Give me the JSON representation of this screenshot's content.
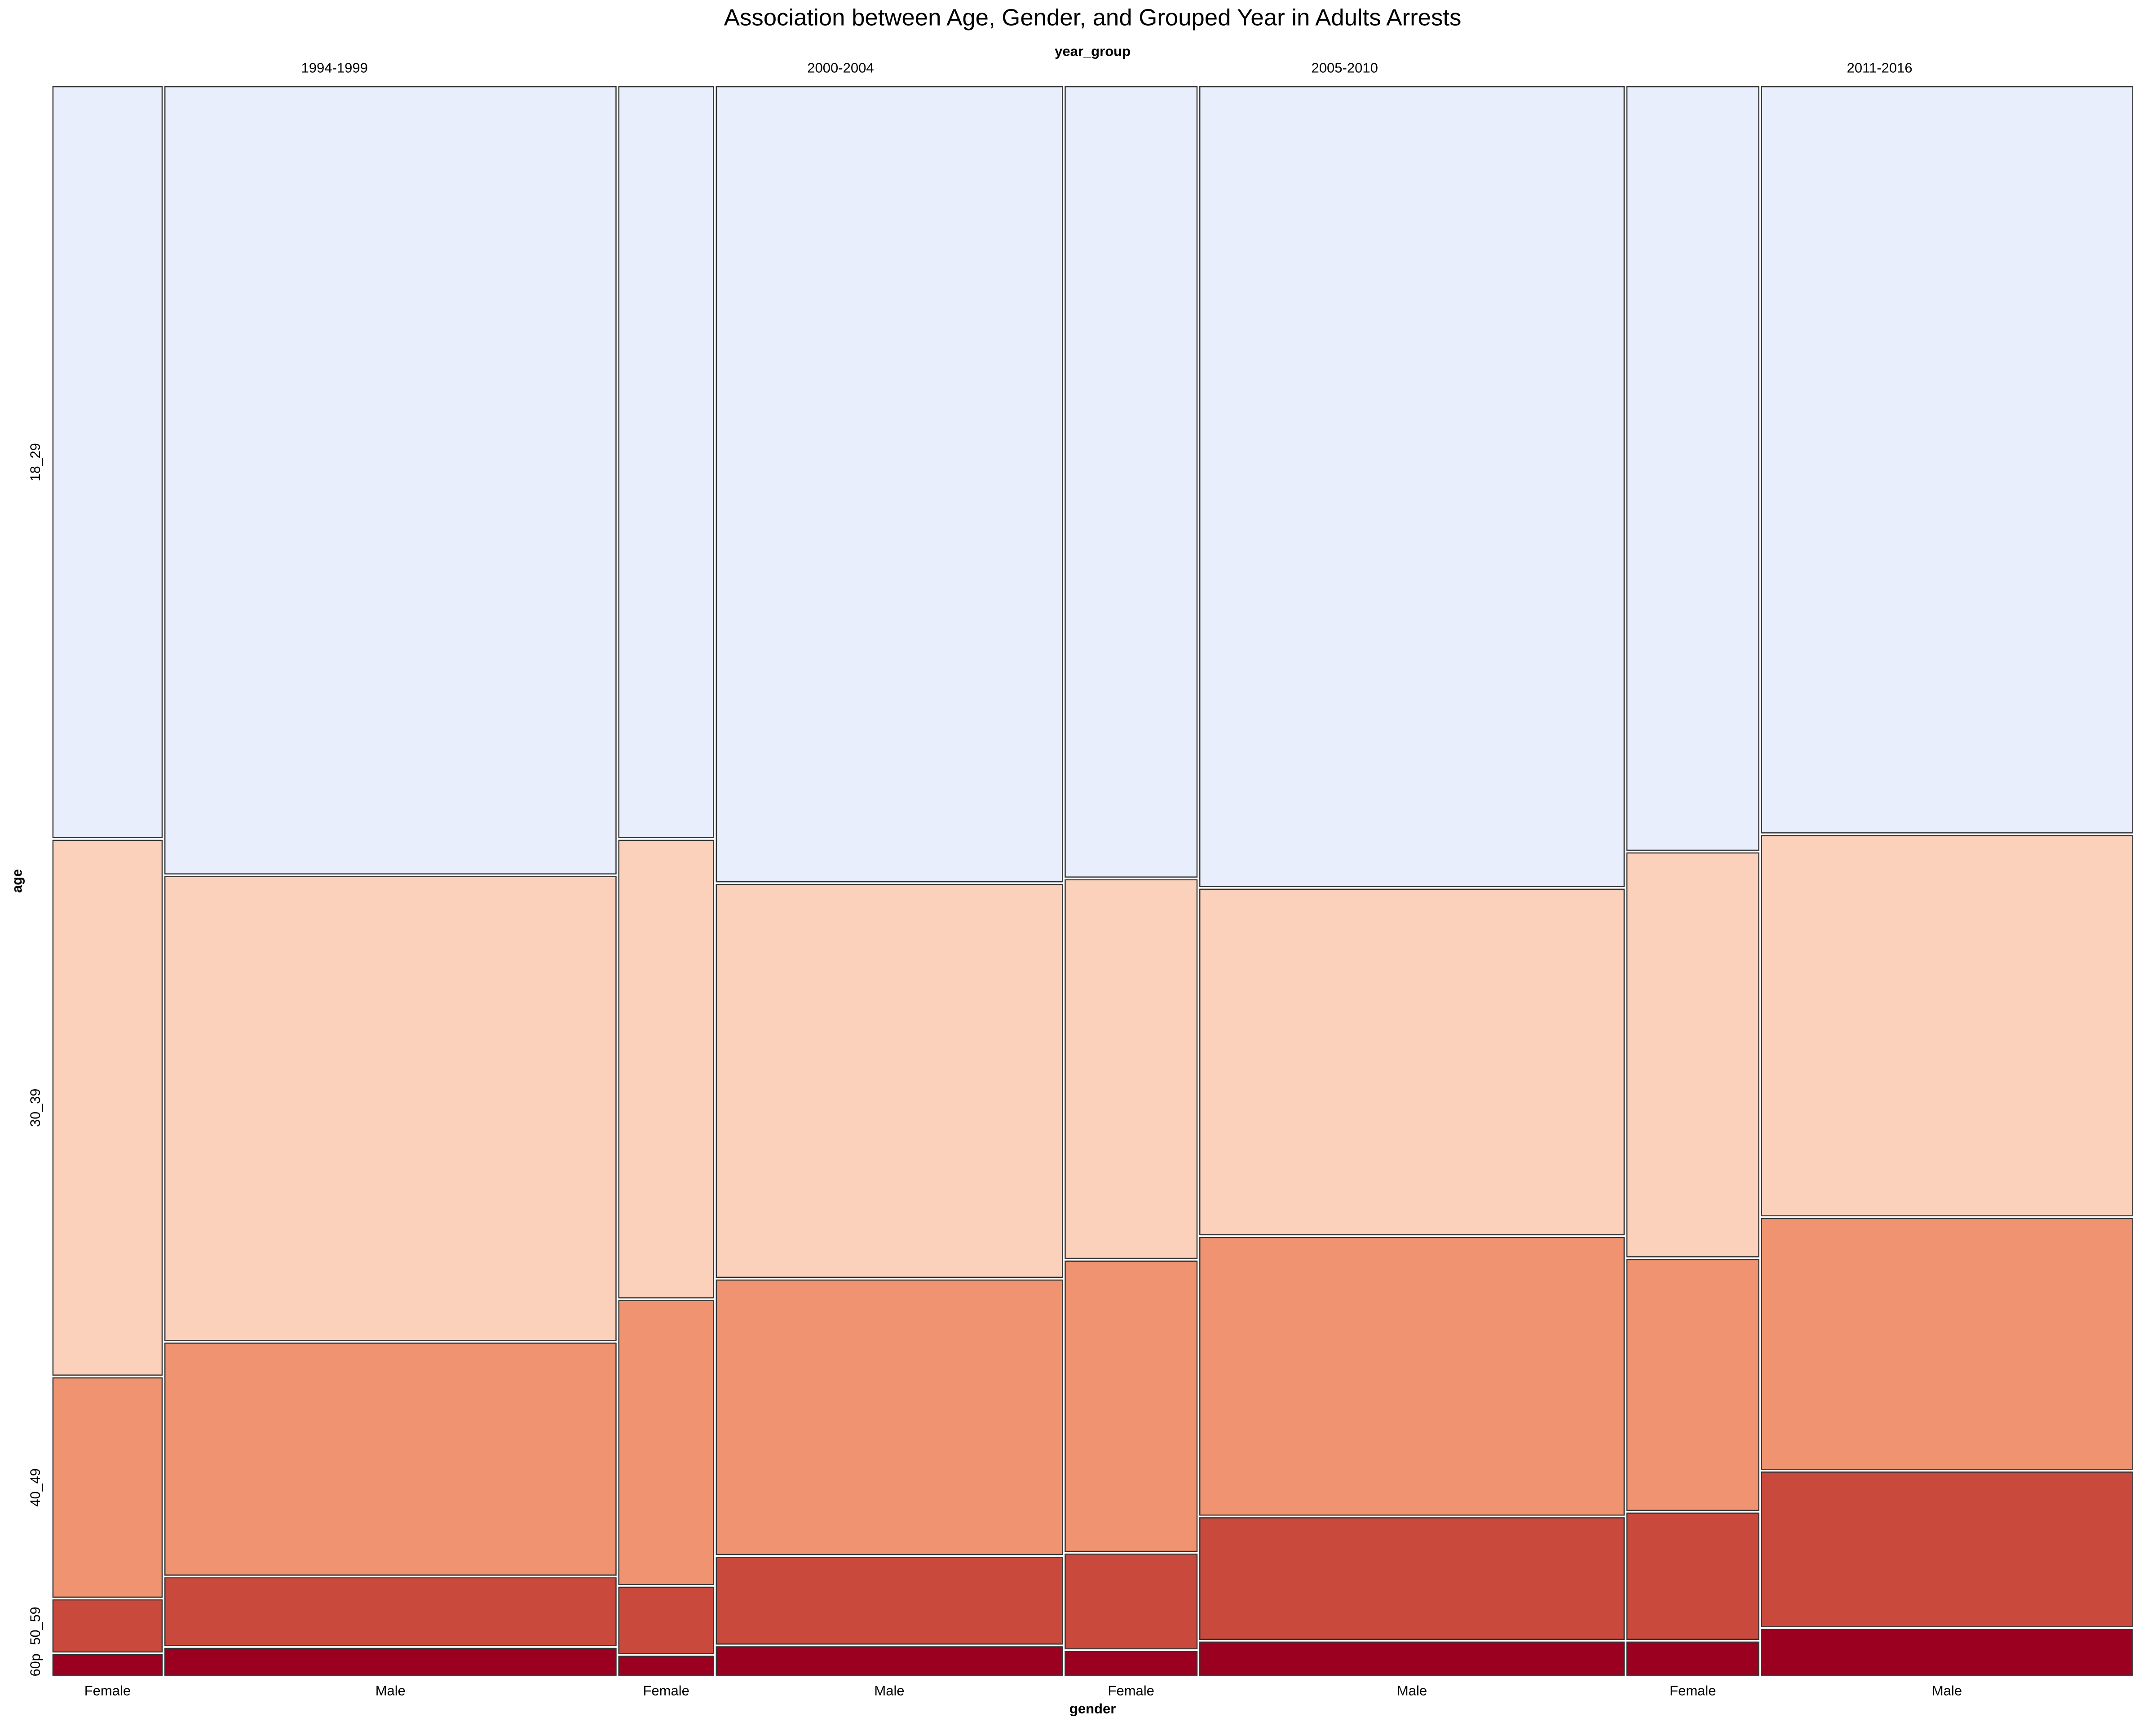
{
  "chart_data": {
    "type": "mosaic",
    "title": "Association between Age, Gender, and Grouped Year in Adults Arrests",
    "top_label": "year_group",
    "x_label": "gender",
    "y_label": "age",
    "categories": [
      "18_29",
      "30_39",
      "40_49",
      "50_59",
      "60p"
    ],
    "colors": [
      "#e8eefc",
      "#fbd1bb",
      "#ef9370",
      "#c9493d",
      "#9b0020"
    ],
    "year_groups": [
      {
        "name": "1994-1999",
        "columns": [
          {
            "gender": "Female",
            "width": 5.3,
            "values": [
              47.6,
              33.9,
              13.9,
              3.3,
              1.3
            ]
          },
          {
            "gender": "Male",
            "width": 21.9,
            "values": [
              49.9,
              29.4,
              14.7,
              4.3,
              1.7
            ]
          }
        ]
      },
      {
        "name": "2000-2004",
        "columns": [
          {
            "gender": "Female",
            "width": 4.6,
            "values": [
              47.6,
              29.0,
              18.0,
              4.2,
              1.2
            ]
          },
          {
            "gender": "Male",
            "width": 16.8,
            "values": [
              50.4,
              24.9,
              17.4,
              5.5,
              1.8
            ]
          }
        ]
      },
      {
        "name": "2005-2010",
        "columns": [
          {
            "gender": "Female",
            "width": 6.4,
            "values": [
              50.1,
              24.0,
              18.4,
              6.0,
              1.5
            ]
          },
          {
            "gender": "Male",
            "width": 20.6,
            "values": [
              50.7,
              21.9,
              17.6,
              7.7,
              2.1
            ]
          }
        ]
      },
      {
        "name": "2011-2016",
        "columns": [
          {
            "gender": "Female",
            "width": 6.4,
            "values": [
              48.4,
              25.6,
              15.9,
              8.0,
              2.1
            ]
          },
          {
            "gender": "Male",
            "width": 18.0,
            "values": [
              47.3,
              24.1,
              15.9,
              9.8,
              2.9
            ]
          }
        ]
      }
    ]
  }
}
